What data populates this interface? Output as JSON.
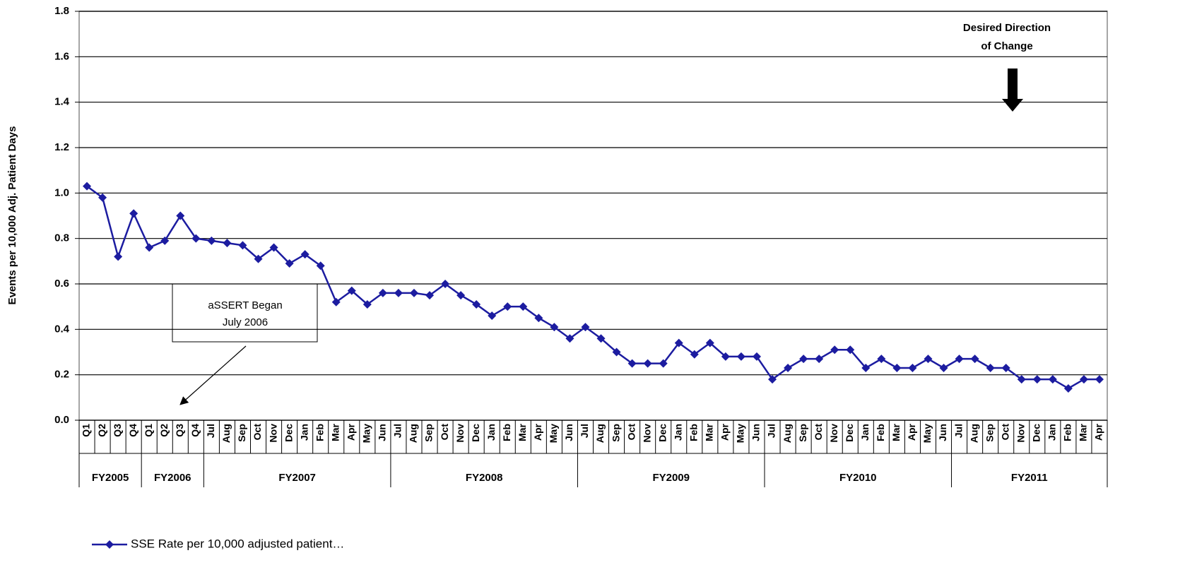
{
  "chart_data": {
    "type": "line",
    "y_label": "Events per 10,000 Adj. Patient Days",
    "groups": [
      {
        "name": "FY2005",
        "categories": [
          "Q1",
          "Q2",
          "Q3",
          "Q4"
        ]
      },
      {
        "name": "FY2006",
        "categories": [
          "Q1",
          "Q2",
          "Q3",
          "Q4"
        ]
      },
      {
        "name": "FY2007",
        "categories": [
          "Jul",
          "Aug",
          "Sep",
          "Oct",
          "Nov",
          "Dec",
          "Jan",
          "Feb",
          "Mar",
          "Apr",
          "May",
          "Jun"
        ]
      },
      {
        "name": "FY2008",
        "categories": [
          "Jul",
          "Aug",
          "Sep",
          "Oct",
          "Nov",
          "Dec",
          "Jan",
          "Feb",
          "Mar",
          "Apr",
          "May",
          "Jun"
        ]
      },
      {
        "name": "FY2009",
        "categories": [
          "Jul",
          "Aug",
          "Sep",
          "Oct",
          "Nov",
          "Dec",
          "Jan",
          "Feb",
          "Mar",
          "Apr",
          "May",
          "Jun"
        ]
      },
      {
        "name": "FY2010",
        "categories": [
          "Jul",
          "Aug",
          "Sep",
          "Oct",
          "Nov",
          "Dec",
          "Jan",
          "Feb",
          "Mar",
          "Apr",
          "May",
          "Jun"
        ]
      },
      {
        "name": "FY2011",
        "categories": [
          "Jul",
          "Aug",
          "Sep",
          "Oct",
          "Nov",
          "Dec",
          "Jan",
          "Feb",
          "Mar",
          "Apr"
        ]
      }
    ],
    "series": [
      {
        "name": "SSE Rate per 10,000 adjusted patient…",
        "color": "#1c1ca0",
        "values": [
          1.03,
          0.98,
          0.72,
          0.91,
          0.76,
          0.79,
          0.9,
          0.8,
          0.79,
          0.78,
          0.77,
          0.71,
          0.76,
          0.69,
          0.73,
          0.68,
          0.52,
          0.57,
          0.51,
          0.56,
          0.56,
          0.56,
          0.55,
          0.6,
          0.55,
          0.51,
          0.46,
          0.5,
          0.5,
          0.45,
          0.41,
          0.36,
          0.41,
          0.36,
          0.3,
          0.25,
          0.25,
          0.25,
          0.34,
          0.29,
          0.34,
          0.28,
          0.28,
          0.28,
          0.18,
          0.23,
          0.27,
          0.27,
          0.31,
          0.31,
          0.23,
          0.27,
          0.23,
          0.23,
          0.27,
          0.23,
          0.27,
          0.27,
          0.23,
          0.23,
          0.18,
          0.18,
          0.18,
          0.14,
          0.18,
          0.18
        ]
      }
    ],
    "ylim": [
      0,
      1.8
    ],
    "yticks": [
      {
        "value": 0,
        "label": "0.0"
      },
      0.2,
      0.4,
      0.6,
      0.8,
      {
        "value": 1,
        "label": "1.0"
      },
      1.2,
      1.4,
      1.6,
      1.8
    ],
    "grid": true,
    "annotations": [
      {
        "text": [
          "aSSERT Began",
          "July 2006"
        ]
      },
      {
        "text": [
          "Desired Direction",
          "of Change"
        ]
      }
    ]
  }
}
